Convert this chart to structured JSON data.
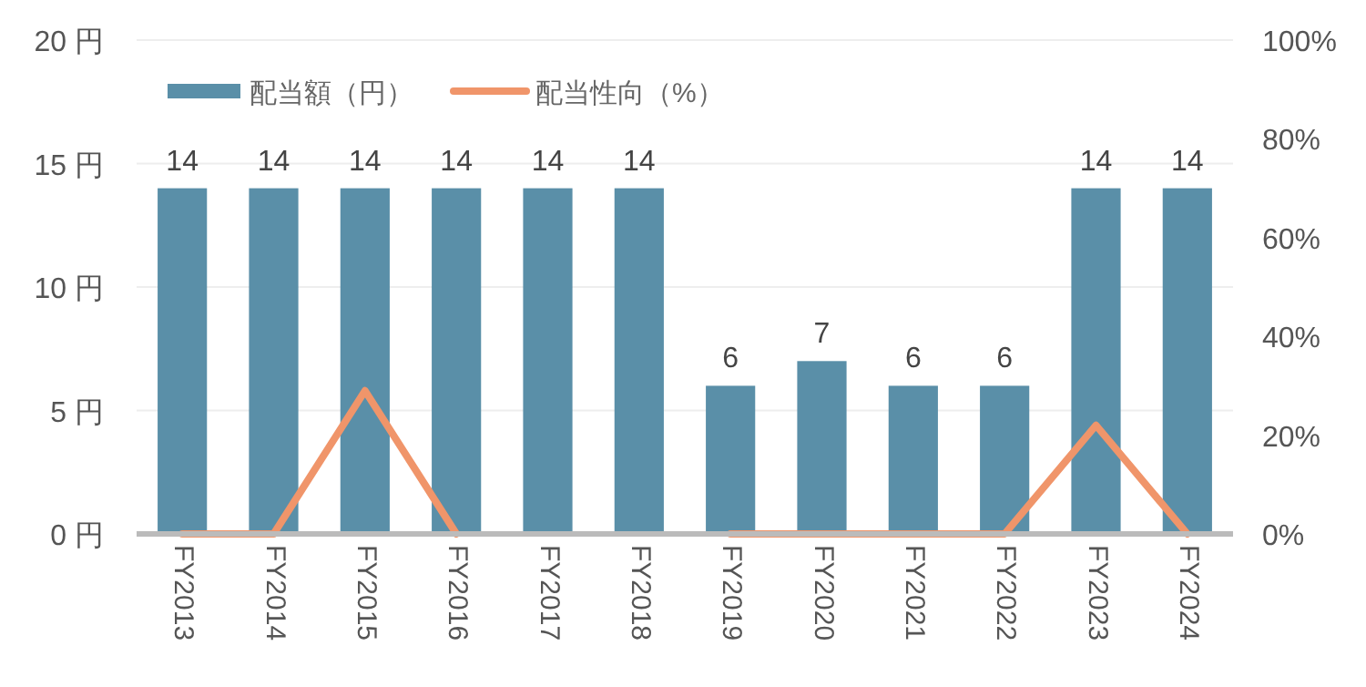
{
  "chart_data": {
    "type": "bar",
    "categories": [
      "FY2013",
      "FY2014",
      "FY2015",
      "FY2016",
      "FY2017",
      "FY2018",
      "FY2019",
      "FY2020",
      "FY2021",
      "FY2022",
      "FY2023",
      "FY2024"
    ],
    "series": [
      {
        "name": "配当額（円）",
        "color": "#5a8fa8",
        "values": [
          14,
          14,
          14,
          14,
          14,
          14,
          6,
          7,
          6,
          6,
          14,
          14
        ],
        "value_labels": [
          "14",
          "14",
          "14",
          "14",
          "14",
          "14",
          "6",
          "7",
          "6",
          "6",
          "14",
          "14"
        ]
      },
      {
        "name": "配当性向（%）",
        "type": "line",
        "axis": "y2",
        "color": "#f0956a",
        "values": [
          0,
          0,
          29,
          0,
          null,
          null,
          0,
          0,
          0,
          0,
          22,
          0
        ]
      }
    ],
    "ylim": [
      0,
      20
    ],
    "yticks": [
      {
        "value": 0,
        "label": "0 円"
      },
      {
        "value": 5,
        "label": "5 円"
      },
      {
        "value": 10,
        "label": "10 円"
      },
      {
        "value": 15,
        "label": "15 円"
      },
      {
        "value": 20,
        "label": "20 円"
      }
    ],
    "y2lim": [
      0,
      100
    ],
    "y2ticks": [
      {
        "value": 0,
        "label": "0%"
      },
      {
        "value": 20,
        "label": "20%"
      },
      {
        "value": 40,
        "label": "40%"
      },
      {
        "value": 60,
        "label": "60%"
      },
      {
        "value": 80,
        "label": "80%"
      },
      {
        "value": 100,
        "label": "100%"
      }
    ],
    "grid": "y",
    "legend": "top left",
    "marker": "none"
  }
}
